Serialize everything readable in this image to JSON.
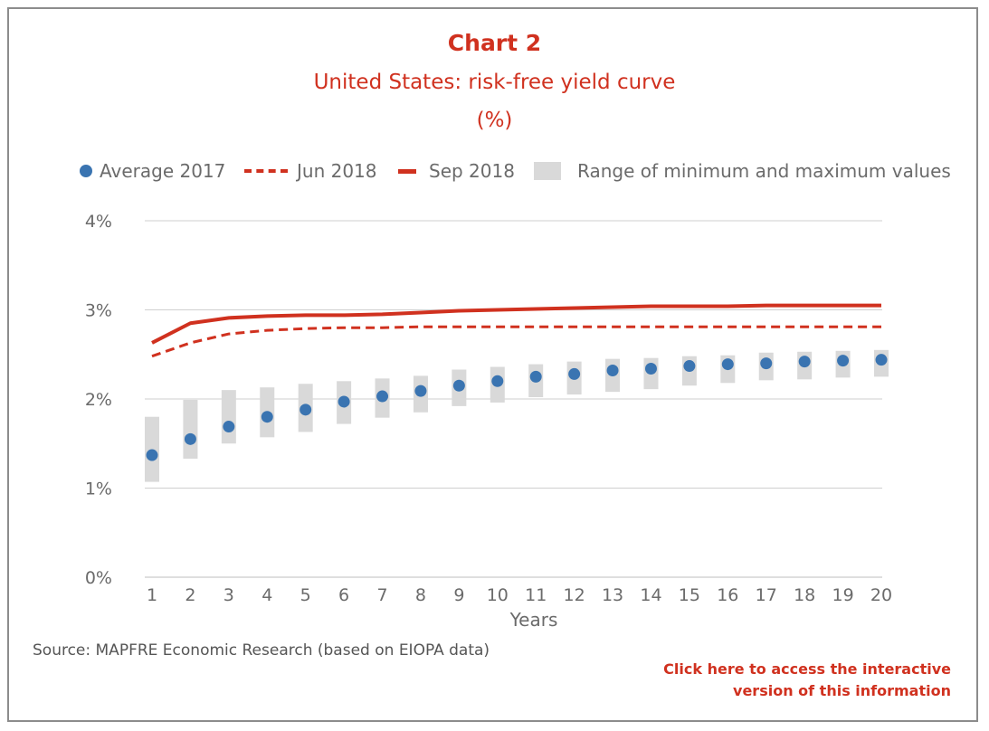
{
  "header": {
    "chart_number": "Chart 2",
    "title": "United States: risk-free yield curve",
    "unit": "(%)"
  },
  "legend": {
    "average": "Average 2017",
    "jun": "Jun 2018",
    "sep": "Sep 2018",
    "range": "Range of minimum and maximum values"
  },
  "colors": {
    "red": "#d0311f",
    "blue": "#3a74b1",
    "range": "#d9d9d9",
    "grid": "#cfcfcf"
  },
  "chart_data": {
    "type": "line",
    "xlabel": "Years",
    "ylabel": "",
    "x": [
      1,
      2,
      3,
      4,
      5,
      6,
      7,
      8,
      9,
      10,
      11,
      12,
      13,
      14,
      15,
      16,
      17,
      18,
      19,
      20
    ],
    "y_ticks": [
      "0%",
      "1%",
      "2%",
      "3%",
      "4%"
    ],
    "ylim": [
      0,
      4
    ],
    "grid": true,
    "legend_position": "top",
    "series": [
      {
        "name": "Sep 2018",
        "style": "solid",
        "values": [
          2.63,
          2.85,
          2.91,
          2.93,
          2.94,
          2.94,
          2.95,
          2.97,
          2.99,
          3.0,
          3.01,
          3.02,
          3.03,
          3.04,
          3.04,
          3.04,
          3.05,
          3.05,
          3.05,
          3.05
        ]
      },
      {
        "name": "Jun 2018",
        "style": "dashed",
        "values": [
          2.48,
          2.63,
          2.73,
          2.77,
          2.79,
          2.8,
          2.8,
          2.81,
          2.81,
          2.81,
          2.81,
          2.81,
          2.81,
          2.81,
          2.81,
          2.81,
          2.81,
          2.81,
          2.81,
          2.81
        ]
      },
      {
        "name": "Average 2017",
        "style": "markers",
        "values": [
          1.37,
          1.55,
          1.69,
          1.8,
          1.88,
          1.97,
          2.03,
          2.09,
          2.15,
          2.2,
          2.25,
          2.28,
          2.32,
          2.34,
          2.37,
          2.39,
          2.4,
          2.42,
          2.43,
          2.44
        ]
      }
    ],
    "range": {
      "name": "Range of minimum and maximum values",
      "min": [
        1.07,
        1.33,
        1.5,
        1.57,
        1.63,
        1.72,
        1.79,
        1.85,
        1.92,
        1.96,
        2.02,
        2.05,
        2.08,
        2.11,
        2.15,
        2.18,
        2.21,
        2.22,
        2.24,
        2.25
      ],
      "max": [
        1.8,
        1.99,
        2.1,
        2.13,
        2.17,
        2.2,
        2.23,
        2.26,
        2.33,
        2.36,
        2.39,
        2.42,
        2.45,
        2.46,
        2.48,
        2.49,
        2.52,
        2.53,
        2.54,
        2.55
      ]
    }
  },
  "footer": {
    "source": "Source: MAPFRE Economic Research (based on EIOPA data)",
    "link_line1": "Click here to access the interactive",
    "link_line2": "version of this information"
  }
}
